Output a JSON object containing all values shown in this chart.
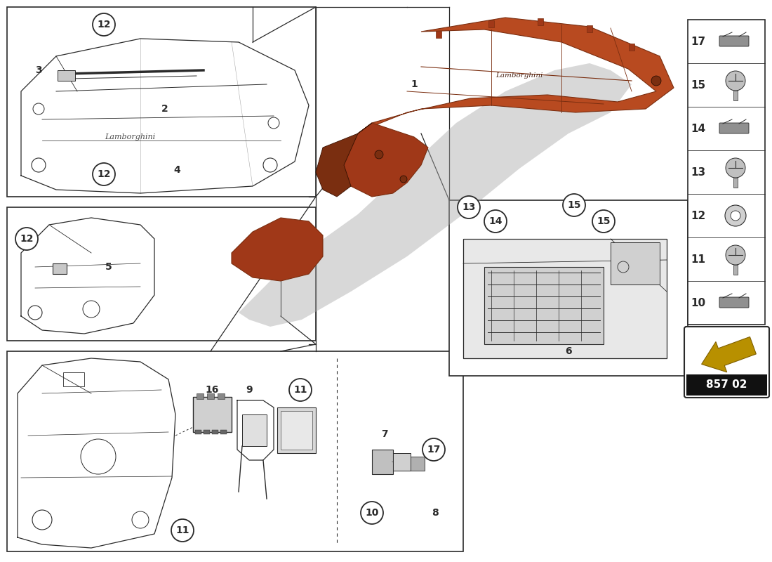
{
  "bg_color": "#ffffff",
  "line_color": "#2a2a2a",
  "orange_color": "#b84a20",
  "orange_dark": "#7a2e10",
  "orange_mid": "#a03818",
  "shadow_color": "#555555",
  "arrow_color": "#b89000",
  "part_number": "857 02",
  "sidebar_items": [
    "17",
    "15",
    "14",
    "13",
    "12",
    "11",
    "10"
  ],
  "figsize": [
    11.0,
    8.0
  ],
  "dpi": 100
}
